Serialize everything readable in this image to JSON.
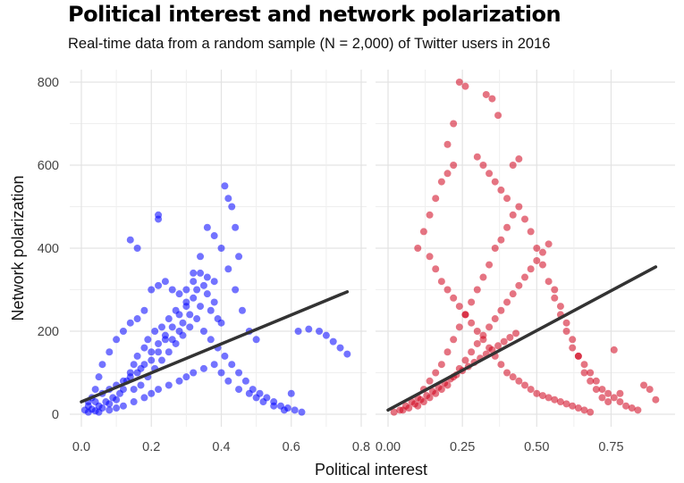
{
  "chart_data": {
    "type": "scatter",
    "title": "Political interest and network polarization",
    "subtitle": "Real-time data from a random sample (N = 2,000) of Twitter users in 2016",
    "xlabel": "Political interest",
    "ylabel": "Network polarization",
    "ylim": [
      0,
      800
    ],
    "yticks": [
      0,
      200,
      400,
      600,
      800
    ],
    "grid": true,
    "panels": [
      {
        "color": "#0000ff",
        "xlim": [
          0,
          0.8
        ],
        "xticks": [
          0,
          0.2,
          0.4,
          0.6,
          0.8
        ],
        "xtick_labels": [
          "0.0",
          "0.2",
          "0.4",
          "0.6",
          "0.8"
        ],
        "trend": {
          "x": [
            0.0,
            0.76
          ],
          "y": [
            30,
            295
          ]
        },
        "points": [
          [
            0.02,
            5
          ],
          [
            0.03,
            12
          ],
          [
            0.04,
            8
          ],
          [
            0.05,
            20
          ],
          [
            0.06,
            15
          ],
          [
            0.07,
            30
          ],
          [
            0.08,
            25
          ],
          [
            0.09,
            40
          ],
          [
            0.1,
            35
          ],
          [
            0.11,
            50
          ],
          [
            0.12,
            60
          ],
          [
            0.13,
            80
          ],
          [
            0.14,
            100
          ],
          [
            0.15,
            120
          ],
          [
            0.16,
            140
          ],
          [
            0.17,
            110
          ],
          [
            0.18,
            160
          ],
          [
            0.19,
            180
          ],
          [
            0.2,
            150
          ],
          [
            0.21,
            200
          ],
          [
            0.22,
            170
          ],
          [
            0.23,
            210
          ],
          [
            0.24,
            190
          ],
          [
            0.25,
            230
          ],
          [
            0.26,
            180
          ],
          [
            0.27,
            250
          ],
          [
            0.28,
            200
          ],
          [
            0.29,
            220
          ],
          [
            0.3,
            260
          ],
          [
            0.31,
            240
          ],
          [
            0.32,
            280
          ],
          [
            0.33,
            300
          ],
          [
            0.34,
            260
          ],
          [
            0.35,
            310
          ],
          [
            0.36,
            290
          ],
          [
            0.37,
            250
          ],
          [
            0.38,
            270
          ],
          [
            0.39,
            230
          ],
          [
            0.4,
            220
          ],
          [
            0.41,
            550
          ],
          [
            0.42,
            520
          ],
          [
            0.43,
            500
          ],
          [
            0.44,
            450
          ],
          [
            0.45,
            380
          ],
          [
            0.22,
            480
          ],
          [
            0.22,
            470
          ],
          [
            0.14,
            420
          ],
          [
            0.16,
            400
          ],
          [
            0.32,
            340
          ],
          [
            0.36,
            330
          ],
          [
            0.34,
            340
          ],
          [
            0.38,
            320
          ],
          [
            0.3,
            300
          ],
          [
            0.28,
            290
          ],
          [
            0.26,
            300
          ],
          [
            0.24,
            320
          ],
          [
            0.22,
            310
          ],
          [
            0.2,
            300
          ],
          [
            0.18,
            250
          ],
          [
            0.16,
            230
          ],
          [
            0.14,
            220
          ],
          [
            0.12,
            200
          ],
          [
            0.1,
            180
          ],
          [
            0.08,
            150
          ],
          [
            0.06,
            120
          ],
          [
            0.05,
            90
          ],
          [
            0.04,
            60
          ],
          [
            0.03,
            40
          ],
          [
            0.02,
            30
          ],
          [
            0.01,
            10
          ],
          [
            0.05,
            5
          ],
          [
            0.08,
            10
          ],
          [
            0.1,
            15
          ],
          [
            0.12,
            20
          ],
          [
            0.15,
            30
          ],
          [
            0.18,
            40
          ],
          [
            0.2,
            50
          ],
          [
            0.22,
            60
          ],
          [
            0.25,
            70
          ],
          [
            0.28,
            80
          ],
          [
            0.3,
            90
          ],
          [
            0.32,
            100
          ],
          [
            0.35,
            110
          ],
          [
            0.38,
            120
          ],
          [
            0.4,
            100
          ],
          [
            0.42,
            80
          ],
          [
            0.45,
            60
          ],
          [
            0.48,
            50
          ],
          [
            0.5,
            40
          ],
          [
            0.52,
            30
          ],
          [
            0.55,
            20
          ],
          [
            0.58,
            10
          ],
          [
            0.6,
            50
          ],
          [
            0.62,
            200
          ],
          [
            0.65,
            205
          ],
          [
            0.68,
            200
          ],
          [
            0.7,
            190
          ],
          [
            0.72,
            175
          ],
          [
            0.74,
            160
          ],
          [
            0.76,
            145
          ],
          [
            0.5,
            180
          ],
          [
            0.48,
            200
          ],
          [
            0.46,
            250
          ],
          [
            0.44,
            300
          ],
          [
            0.42,
            350
          ],
          [
            0.4,
            400
          ],
          [
            0.38,
            430
          ],
          [
            0.36,
            450
          ],
          [
            0.34,
            380
          ],
          [
            0.32,
            320
          ],
          [
            0.3,
            270
          ],
          [
            0.28,
            240
          ],
          [
            0.26,
            210
          ],
          [
            0.24,
            180
          ],
          [
            0.22,
            150
          ],
          [
            0.2,
            130
          ],
          [
            0.18,
            120
          ],
          [
            0.16,
            100
          ],
          [
            0.14,
            90
          ],
          [
            0.12,
            80
          ],
          [
            0.1,
            70
          ],
          [
            0.08,
            60
          ],
          [
            0.06,
            50
          ],
          [
            0.04,
            30
          ],
          [
            0.02,
            20
          ],
          [
            0.15,
            60
          ],
          [
            0.17,
            70
          ],
          [
            0.19,
            90
          ],
          [
            0.21,
            110
          ],
          [
            0.23,
            130
          ],
          [
            0.25,
            150
          ],
          [
            0.27,
            170
          ],
          [
            0.29,
            190
          ],
          [
            0.31,
            210
          ],
          [
            0.33,
            230
          ],
          [
            0.35,
            200
          ],
          [
            0.37,
            180
          ],
          [
            0.39,
            160
          ],
          [
            0.41,
            140
          ],
          [
            0.43,
            120
          ],
          [
            0.45,
            100
          ],
          [
            0.47,
            80
          ],
          [
            0.49,
            60
          ],
          [
            0.51,
            50
          ],
          [
            0.53,
            40
          ],
          [
            0.55,
            30
          ],
          [
            0.57,
            20
          ],
          [
            0.59,
            15
          ],
          [
            0.61,
            10
          ],
          [
            0.63,
            5
          ]
        ]
      },
      {
        "color": "#d0021b",
        "xlim": [
          0,
          0.92
        ],
        "xticks": [
          0,
          0.25,
          0.5,
          0.75
        ],
        "xtick_labels": [
          "0.00",
          "0.25",
          "0.50",
          "0.75"
        ],
        "trend": {
          "x": [
            0.0,
            0.9
          ],
          "y": [
            10,
            355
          ]
        },
        "points": [
          [
            0.02,
            5
          ],
          [
            0.04,
            10
          ],
          [
            0.06,
            20
          ],
          [
            0.08,
            30
          ],
          [
            0.1,
            40
          ],
          [
            0.12,
            60
          ],
          [
            0.14,
            80
          ],
          [
            0.16,
            100
          ],
          [
            0.18,
            120
          ],
          [
            0.2,
            150
          ],
          [
            0.22,
            180
          ],
          [
            0.24,
            210
          ],
          [
            0.26,
            240
          ],
          [
            0.28,
            270
          ],
          [
            0.3,
            300
          ],
          [
            0.32,
            330
          ],
          [
            0.34,
            360
          ],
          [
            0.36,
            400
          ],
          [
            0.38,
            420
          ],
          [
            0.4,
            450
          ],
          [
            0.42,
            480
          ],
          [
            0.44,
            500
          ],
          [
            0.46,
            470
          ],
          [
            0.48,
            440
          ],
          [
            0.5,
            400
          ],
          [
            0.52,
            360
          ],
          [
            0.54,
            320
          ],
          [
            0.56,
            280
          ],
          [
            0.58,
            240
          ],
          [
            0.6,
            200
          ],
          [
            0.62,
            160
          ],
          [
            0.64,
            140
          ],
          [
            0.66,
            120
          ],
          [
            0.68,
            100
          ],
          [
            0.7,
            80
          ],
          [
            0.72,
            60
          ],
          [
            0.74,
            50
          ],
          [
            0.76,
            40
          ],
          [
            0.78,
            30
          ],
          [
            0.8,
            20
          ],
          [
            0.82,
            15
          ],
          [
            0.84,
            10
          ],
          [
            0.86,
            70
          ],
          [
            0.88,
            60
          ],
          [
            0.9,
            35
          ],
          [
            0.24,
            800
          ],
          [
            0.26,
            790
          ],
          [
            0.22,
            700
          ],
          [
            0.2,
            650
          ],
          [
            0.33,
            770
          ],
          [
            0.35,
            760
          ],
          [
            0.37,
            720
          ],
          [
            0.3,
            620
          ],
          [
            0.32,
            600
          ],
          [
            0.34,
            580
          ],
          [
            0.36,
            560
          ],
          [
            0.38,
            540
          ],
          [
            0.4,
            520
          ],
          [
            0.42,
            600
          ],
          [
            0.44,
            615
          ],
          [
            0.22,
            600
          ],
          [
            0.2,
            580
          ],
          [
            0.18,
            560
          ],
          [
            0.16,
            520
          ],
          [
            0.14,
            480
          ],
          [
            0.12,
            440
          ],
          [
            0.1,
            400
          ],
          [
            0.14,
            380
          ],
          [
            0.16,
            350
          ],
          [
            0.18,
            320
          ],
          [
            0.2,
            300
          ],
          [
            0.22,
            280
          ],
          [
            0.24,
            260
          ],
          [
            0.26,
            240
          ],
          [
            0.28,
            220
          ],
          [
            0.3,
            200
          ],
          [
            0.32,
            180
          ],
          [
            0.34,
            160
          ],
          [
            0.36,
            140
          ],
          [
            0.38,
            120
          ],
          [
            0.4,
            100
          ],
          [
            0.42,
            90
          ],
          [
            0.44,
            80
          ],
          [
            0.46,
            70
          ],
          [
            0.48,
            60
          ],
          [
            0.5,
            50
          ],
          [
            0.52,
            45
          ],
          [
            0.54,
            40
          ],
          [
            0.56,
            35
          ],
          [
            0.58,
            30
          ],
          [
            0.6,
            25
          ],
          [
            0.62,
            20
          ],
          [
            0.64,
            15
          ],
          [
            0.66,
            10
          ],
          [
            0.68,
            5
          ],
          [
            0.1,
            20
          ],
          [
            0.12,
            30
          ],
          [
            0.14,
            40
          ],
          [
            0.16,
            50
          ],
          [
            0.18,
            60
          ],
          [
            0.2,
            70
          ],
          [
            0.22,
            90
          ],
          [
            0.24,
            110
          ],
          [
            0.26,
            130
          ],
          [
            0.28,
            150
          ],
          [
            0.3,
            170
          ],
          [
            0.32,
            190
          ],
          [
            0.34,
            210
          ],
          [
            0.36,
            230
          ],
          [
            0.38,
            250
          ],
          [
            0.4,
            270
          ],
          [
            0.42,
            290
          ],
          [
            0.44,
            310
          ],
          [
            0.46,
            330
          ],
          [
            0.48,
            350
          ],
          [
            0.5,
            370
          ],
          [
            0.52,
            390
          ],
          [
            0.54,
            410
          ],
          [
            0.56,
            300
          ],
          [
            0.58,
            260
          ],
          [
            0.6,
            220
          ],
          [
            0.62,
            180
          ],
          [
            0.64,
            140
          ],
          [
            0.66,
            100
          ],
          [
            0.68,
            80
          ],
          [
            0.7,
            60
          ],
          [
            0.72,
            40
          ],
          [
            0.74,
            30
          ],
          [
            0.76,
            155
          ],
          [
            0.78,
            50
          ],
          [
            0.05,
            10
          ],
          [
            0.07,
            15
          ],
          [
            0.09,
            25
          ],
          [
            0.11,
            35
          ],
          [
            0.13,
            45
          ],
          [
            0.15,
            55
          ],
          [
            0.17,
            65
          ],
          [
            0.19,
            75
          ],
          [
            0.21,
            85
          ],
          [
            0.23,
            95
          ],
          [
            0.25,
            105
          ],
          [
            0.27,
            115
          ],
          [
            0.29,
            125
          ],
          [
            0.31,
            135
          ],
          [
            0.33,
            145
          ],
          [
            0.35,
            155
          ],
          [
            0.37,
            165
          ],
          [
            0.39,
            175
          ],
          [
            0.41,
            185
          ],
          [
            0.43,
            195
          ]
        ]
      }
    ]
  }
}
